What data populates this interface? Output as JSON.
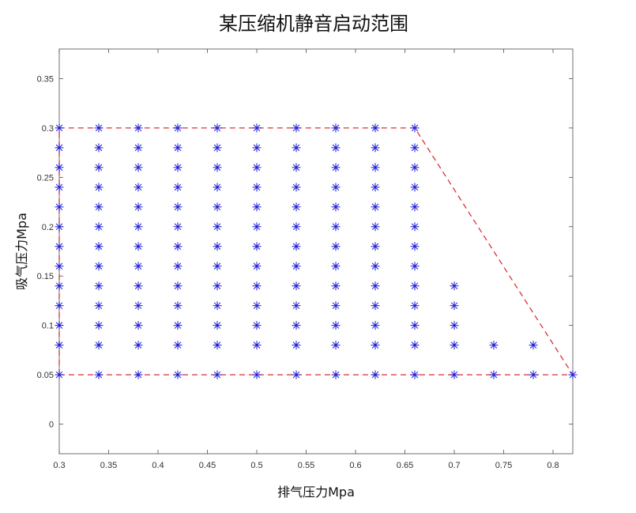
{
  "chart_data": {
    "type": "scatter",
    "title": "某压缩机静音启动范围",
    "xlabel": "排气压力Mpa",
    "ylabel": "吸气压力Mpa",
    "xlim": [
      0.3,
      0.82
    ],
    "ylim": [
      -0.03,
      0.38
    ],
    "xticks": [
      0.3,
      0.35,
      0.4,
      0.45,
      0.5,
      0.55,
      0.6,
      0.65,
      0.7,
      0.75,
      0.8
    ],
    "yticks": [
      0,
      0.05,
      0.1,
      0.15,
      0.2,
      0.25,
      0.3,
      0.35
    ],
    "xtick_labels": [
      "0.3",
      "0.35",
      "0.4",
      "0.45",
      "0.5",
      "0.55",
      "0.6",
      "0.65",
      "0.7",
      "0.75",
      "0.8"
    ],
    "ytick_labels": [
      "0",
      "0.05",
      "0.1",
      "0.15",
      "0.2",
      "0.25",
      "0.3",
      "0.35"
    ],
    "grid": false,
    "marker": "asterisk",
    "colors": {
      "points": "#1a1ad6",
      "boundary": "#d9303a"
    },
    "grid_x": [
      0.3,
      0.34,
      0.38,
      0.42,
      0.46,
      0.5,
      0.54,
      0.58,
      0.62,
      0.66
    ],
    "grid_y": [
      0.05,
      0.08,
      0.1,
      0.12,
      0.14,
      0.16,
      0.18,
      0.2,
      0.22,
      0.24,
      0.26,
      0.28,
      0.3
    ],
    "extra_points": [
      [
        0.7,
        0.05
      ],
      [
        0.7,
        0.08
      ],
      [
        0.7,
        0.1
      ],
      [
        0.7,
        0.12
      ],
      [
        0.7,
        0.14
      ],
      [
        0.74,
        0.05
      ],
      [
        0.74,
        0.08
      ],
      [
        0.78,
        0.05
      ],
      [
        0.78,
        0.08
      ],
      [
        0.82,
        0.05
      ]
    ],
    "boundary_polygon": [
      [
        0.3,
        0.05
      ],
      [
        0.3,
        0.3
      ],
      [
        0.66,
        0.3
      ],
      [
        0.82,
        0.05
      ],
      [
        0.3,
        0.05
      ]
    ]
  }
}
